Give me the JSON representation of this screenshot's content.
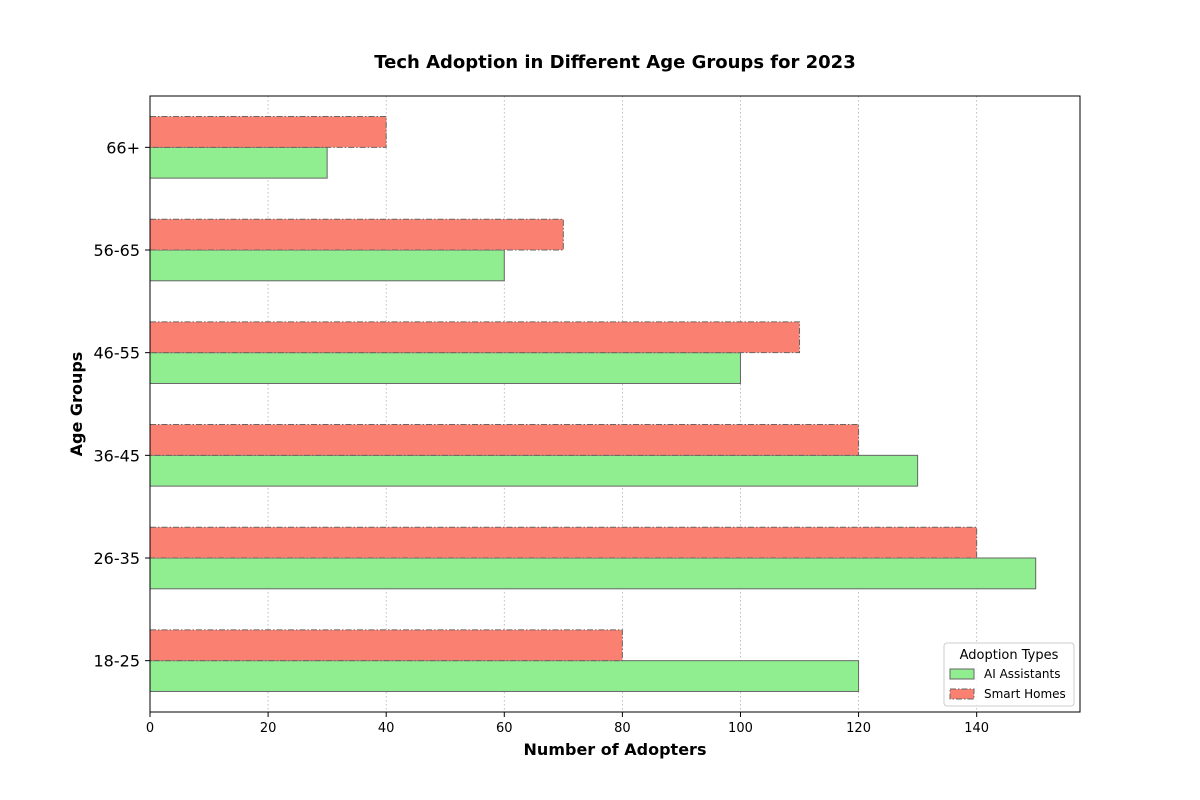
{
  "chart_data": {
    "type": "bar",
    "orientation": "horizontal",
    "title": "Tech Adoption in Different Age Groups for 2023",
    "xlabel": "Number of Adopters",
    "ylabel": "Age Groups",
    "categories": [
      "18-25",
      "26-35",
      "36-45",
      "46-55",
      "56-65",
      "66+"
    ],
    "series": [
      {
        "name": "AI Assistants",
        "values": [
          120,
          150,
          130,
          100,
          60,
          30
        ],
        "color": "#90ee90"
      },
      {
        "name": "Smart Homes",
        "values": [
          80,
          140,
          120,
          110,
          70,
          40
        ],
        "color": "#fa8072"
      }
    ],
    "xlim": [
      0,
      157.5
    ],
    "xticks": [
      0,
      20,
      40,
      60,
      80,
      100,
      120,
      140
    ],
    "grid": "vertical-dotted",
    "legend": {
      "title": "Adoption Types",
      "placement": "lower-right"
    }
  }
}
